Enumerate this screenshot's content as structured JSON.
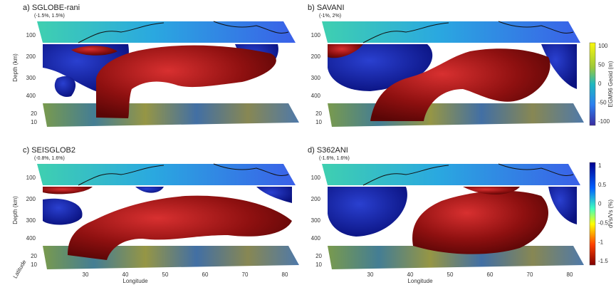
{
  "panels": [
    {
      "title": "a) SGLOBE-rani",
      "subtitle": "(-1.5%, 1.5%)",
      "depth_label": "Depth (km)",
      "depth_ticks": [
        "100",
        "200",
        "300",
        "400"
      ],
      "latitude_ticks": [
        "20",
        "10"
      ]
    },
    {
      "title": "b) SAVANI",
      "subtitle": "(-1%, 2%)",
      "depth_ticks": [
        "100",
        "200",
        "300",
        "400"
      ],
      "latitude_ticks": [
        "20",
        "10"
      ]
    },
    {
      "title": "c) SEISGLOB2",
      "subtitle": "(-0.8%, 1.6%)",
      "depth_label": "Depth (km)",
      "depth_ticks": [
        "100",
        "200",
        "300",
        "400"
      ],
      "latitude_ticks": [
        "20",
        "10"
      ],
      "latitude_label": "Latitude",
      "longitude_ticks": [
        "30",
        "40",
        "50",
        "60",
        "70",
        "80"
      ],
      "longitude_label": "Longitude"
    },
    {
      "title": "d) S362ANI",
      "subtitle": "(-1.6%, 1.6%)",
      "depth_ticks": [
        "100",
        "200",
        "300",
        "400"
      ],
      "latitude_ticks": [
        "20",
        "10"
      ],
      "longitude_ticks": [
        "30",
        "40",
        "50",
        "60",
        "70",
        "80"
      ],
      "longitude_label": "Longitude"
    }
  ],
  "geoid_colorbar": {
    "label": "EGM96 Geoid (m)",
    "ticks": [
      "100",
      "50",
      "0",
      "-50",
      "-100"
    ]
  },
  "velocity_colorbar": {
    "label": "dVs/Vs (%)",
    "ticks": [
      "1",
      "0.5",
      "0",
      "-0.5",
      "-1",
      "-1.5"
    ]
  }
}
